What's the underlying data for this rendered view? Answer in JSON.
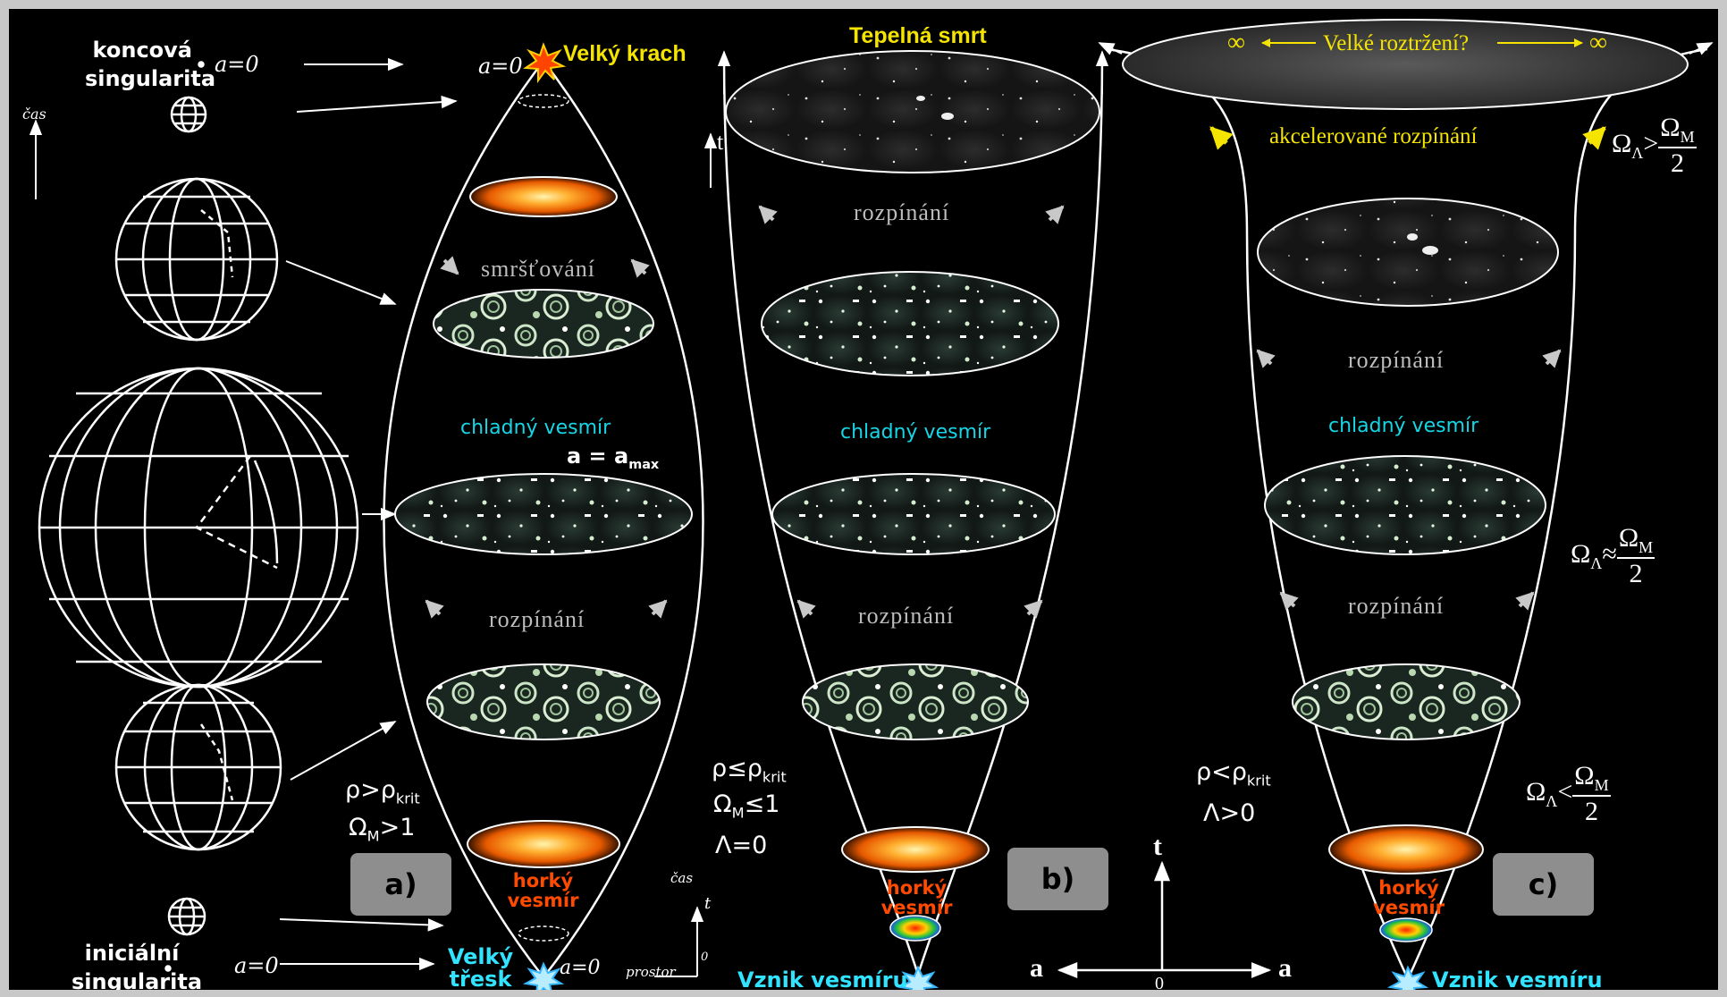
{
  "left": {
    "final_singularity_label": "koncová singularita",
    "final_a": "a=0",
    "time_label": "čas",
    "initial_singularity_label": "iniciální singularita",
    "initial_a": "a=0"
  },
  "panel_a": {
    "big_crunch": "Velký krach",
    "a_top": "a=0",
    "contraction": "smršťování",
    "cold": "chladný vesmír",
    "amax_base": "a = a",
    "amax_sub": "max",
    "expansion": "rozpínání",
    "cond1_base": "ρ>ρ",
    "cond1_sub": "krit",
    "cond2_base": "Ω",
    "cond2_sub": "M",
    "cond2_rest": ">1",
    "hot": "horký vesmír",
    "badge": "a)",
    "big_bang": "Velký třesk",
    "a_bottom": "a=0",
    "axis_time": "čas",
    "axis_t": "t",
    "axis_space": "prostor",
    "axis_zero": "0"
  },
  "panel_b": {
    "heat_death": "Tepelná smrt",
    "t_label": "t",
    "expansion_top": "rozpínání",
    "cold": "chladný vesmír",
    "expansion": "rozpínání",
    "cond1_base": "ρ≤ρ",
    "cond1_sub": "krit",
    "cond2_base": "Ω",
    "cond2_sub": "M",
    "cond2_rest": "≤1",
    "cond3": "Λ=0",
    "hot": "horký vesmír",
    "badge": "b)",
    "origin": "Vznik vesmíru"
  },
  "axes": {
    "t": "t",
    "a_left": "a",
    "a_right": "a",
    "zero": "0"
  },
  "panel_c": {
    "inf_left": "∞",
    "big_rip": "Velké roztržení?",
    "inf_right": "∞",
    "accelerated": "akcelerované rozpínání",
    "omega_gt_lhs": "Ω",
    "omega_gt_sub": "Λ",
    "omega_gt_op": ">",
    "omega_num": "Ω",
    "omega_num_sub": "M",
    "omega_den": "2",
    "expansion_upper": "rozpínání",
    "cold": "chladný vesmír",
    "omega_approx_op": "≈",
    "expansion": "rozpínání",
    "cond1_base": "ρ<ρ",
    "cond1_sub": "krit",
    "cond2": "Λ>0",
    "omega_lt_op": "<",
    "hot": "horký vesmír",
    "badge": "c)",
    "origin": "Vznik vesmíru"
  },
  "colors": {
    "background": "#000000",
    "yellow_label": "#f5e400",
    "cyan_label": "#16d6e6",
    "hot_label": "#ff4a00",
    "badge": "#8e8e8e"
  }
}
